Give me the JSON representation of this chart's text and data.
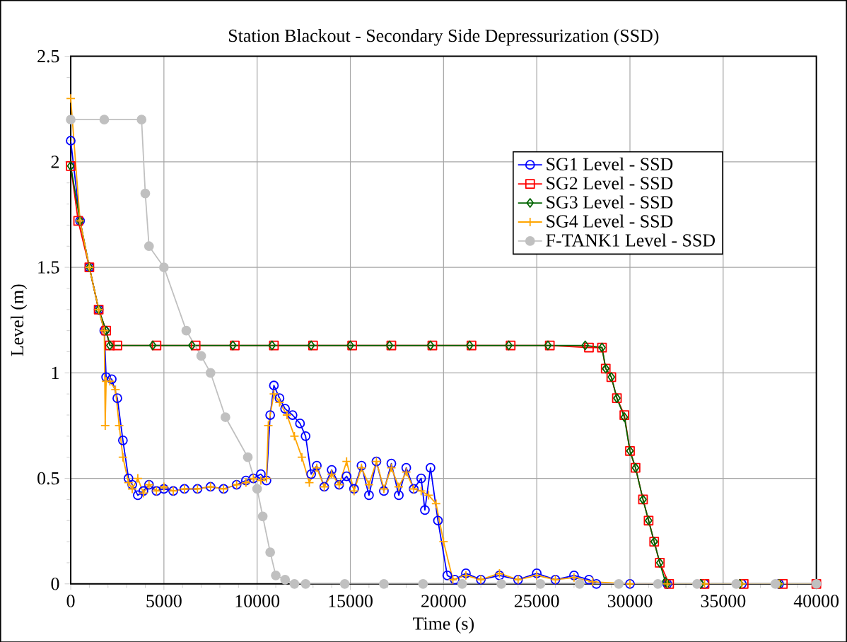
{
  "chart_data": {
    "type": "line",
    "title": "Station Blackout - Secondary Side Depressurization (SSD)",
    "xlabel": "Time (s)",
    "ylabel": "Level (m)",
    "xlim": [
      0,
      40000
    ],
    "ylim": [
      0,
      2.5
    ],
    "xticks": [
      0,
      5000,
      10000,
      15000,
      20000,
      25000,
      30000,
      35000,
      40000
    ],
    "yticks": [
      0,
      0.5,
      1,
      1.5,
      2,
      2.5
    ],
    "grid": true,
    "legend": "top right",
    "series": [
      {
        "name": "SG1 Level - SSD",
        "color": "#0000ff",
        "marker": "circle",
        "x": [
          0,
          500,
          1000,
          1500,
          1800,
          1900,
          2200,
          2500,
          2800,
          3100,
          3300,
          3600,
          3900,
          4200,
          4600,
          5000,
          5500,
          6100,
          6800,
          7500,
          8200,
          8900,
          9400,
          9800,
          10200,
          10500,
          10700,
          10900,
          11200,
          11500,
          11900,
          12300,
          12600,
          12900,
          13200,
          13600,
          14000,
          14400,
          14800,
          15200,
          15600,
          16000,
          16400,
          16800,
          17200,
          17600,
          18000,
          18400,
          18800,
          19000,
          19300,
          19700,
          20200,
          20600,
          21200,
          22000,
          23000,
          24000,
          25000,
          26000,
          27000,
          27800,
          28200,
          30000,
          32000,
          34000,
          36000,
          38000,
          40000
        ],
        "values": [
          2.1,
          1.72,
          1.5,
          1.3,
          1.2,
          0.98,
          0.97,
          0.88,
          0.68,
          0.5,
          0.47,
          0.42,
          0.44,
          0.47,
          0.44,
          0.45,
          0.44,
          0.45,
          0.45,
          0.46,
          0.45,
          0.47,
          0.49,
          0.5,
          0.52,
          0.49,
          0.8,
          0.94,
          0.88,
          0.83,
          0.8,
          0.76,
          0.7,
          0.52,
          0.56,
          0.46,
          0.54,
          0.47,
          0.51,
          0.45,
          0.56,
          0.42,
          0.58,
          0.44,
          0.57,
          0.42,
          0.55,
          0.45,
          0.5,
          0.35,
          0.55,
          0.3,
          0.04,
          0.02,
          0.05,
          0.02,
          0.04,
          0.02,
          0.05,
          0.02,
          0.04,
          0.02,
          0,
          0,
          0,
          0,
          0,
          0,
          0
        ]
      },
      {
        "name": "SG2 Level - SSD",
        "color": "#ff0000",
        "marker": "square",
        "x": [
          0,
          400,
          1000,
          1500,
          1900,
          2100,
          2500,
          4600,
          6700,
          8800,
          10900,
          13000,
          15100,
          17200,
          19400,
          21500,
          23600,
          25700,
          27800,
          28500,
          28700,
          29000,
          29300,
          29700,
          30000,
          30300,
          30700,
          31000,
          31300,
          31600,
          31900,
          32100,
          34000,
          36100,
          38200,
          40000
        ],
        "values": [
          1.98,
          1.72,
          1.5,
          1.3,
          1.2,
          1.13,
          1.13,
          1.13,
          1.13,
          1.13,
          1.13,
          1.13,
          1.13,
          1.13,
          1.13,
          1.13,
          1.13,
          1.13,
          1.12,
          1.12,
          1.02,
          0.98,
          0.88,
          0.8,
          0.63,
          0.55,
          0.4,
          0.3,
          0.2,
          0.1,
          null,
          0,
          0,
          0,
          0,
          0
        ]
      },
      {
        "name": "SG3 Level - SSD",
        "color": "#006400",
        "marker": "diamond",
        "x": [
          0,
          500,
          1000,
          1500,
          1900,
          2100,
          4400,
          6500,
          8700,
          10800,
          12900,
          15000,
          17100,
          19300,
          21400,
          23500,
          25600,
          27600,
          28500,
          28700,
          29000,
          29300,
          29700,
          30000,
          30300,
          30700,
          31000,
          31300,
          31600,
          31900,
          32000,
          33800,
          35900,
          38000,
          40000
        ],
        "values": [
          1.98,
          1.72,
          1.5,
          1.3,
          1.2,
          1.13,
          1.13,
          1.13,
          1.13,
          1.13,
          1.13,
          1.13,
          1.13,
          1.13,
          1.13,
          1.13,
          1.13,
          1.13,
          1.12,
          1.02,
          0.98,
          0.88,
          0.79,
          0.63,
          0.55,
          0.4,
          0.3,
          0.2,
          0.1,
          0.01,
          0,
          0,
          0,
          0,
          0
        ]
      },
      {
        "name": "SG4 Level - SSD",
        "color": "#ffa500",
        "marker": "cross",
        "x": [
          0,
          500,
          1000,
          1500,
          1800,
          1850,
          1900,
          2100,
          2400,
          2600,
          2800,
          3100,
          3300,
          3600,
          3900,
          4200,
          4600,
          5000,
          5500,
          6100,
          6800,
          7500,
          8200,
          8900,
          9400,
          9800,
          10200,
          10500,
          10600,
          10900,
          11200,
          11600,
          12000,
          12400,
          12800,
          13200,
          13600,
          14000,
          14400,
          14800,
          15200,
          15600,
          16000,
          16400,
          16800,
          17200,
          17600,
          18000,
          18400,
          18800,
          19200,
          19600,
          20000,
          20500,
          21200,
          22000,
          23000,
          24000,
          25000,
          26000,
          27000,
          28000,
          30000,
          32000,
          34000,
          36000,
          38000,
          40000
        ],
        "values": [
          2.3,
          1.72,
          1.5,
          1.3,
          1.2,
          0.75,
          0.96,
          0.96,
          0.92,
          0.75,
          0.6,
          0.48,
          0.45,
          0.5,
          0.43,
          0.47,
          0.44,
          0.46,
          0.44,
          0.45,
          0.45,
          0.46,
          0.45,
          0.47,
          0.48,
          0.5,
          0.49,
          0.5,
          0.75,
          0.9,
          0.86,
          0.8,
          0.7,
          0.6,
          0.48,
          0.55,
          0.46,
          0.52,
          0.47,
          0.58,
          0.44,
          0.55,
          0.47,
          0.58,
          0.45,
          0.55,
          0.46,
          0.53,
          0.45,
          0.44,
          0.42,
          0.38,
          0.2,
          0.02,
          0.04,
          0.02,
          0.05,
          0.02,
          0.04,
          0.02,
          0.03,
          0.01,
          0,
          0,
          0,
          0,
          0,
          0
        ]
      },
      {
        "name": "F-TANK1 Level - SSD",
        "color": "#c0c0c0",
        "marker": "circle*",
        "x": [
          0,
          1800,
          3800,
          4000,
          4200,
          5000,
          6200,
          7000,
          7500,
          8300,
          9500,
          10000,
          10300,
          10700,
          11000,
          11500,
          12000,
          12600,
          14700,
          16800,
          18900,
          21000,
          23100,
          25200,
          27300,
          29400,
          31500,
          33600,
          35700,
          37800,
          40000
        ],
        "values": [
          2.2,
          2.2,
          2.2,
          1.85,
          1.6,
          1.5,
          1.2,
          1.08,
          1.0,
          0.79,
          0.6,
          0.45,
          0.32,
          0.15,
          0.04,
          0.02,
          0,
          0,
          0,
          0,
          0,
          0,
          0,
          0,
          0,
          0,
          0,
          0,
          0,
          0,
          0
        ]
      }
    ]
  }
}
